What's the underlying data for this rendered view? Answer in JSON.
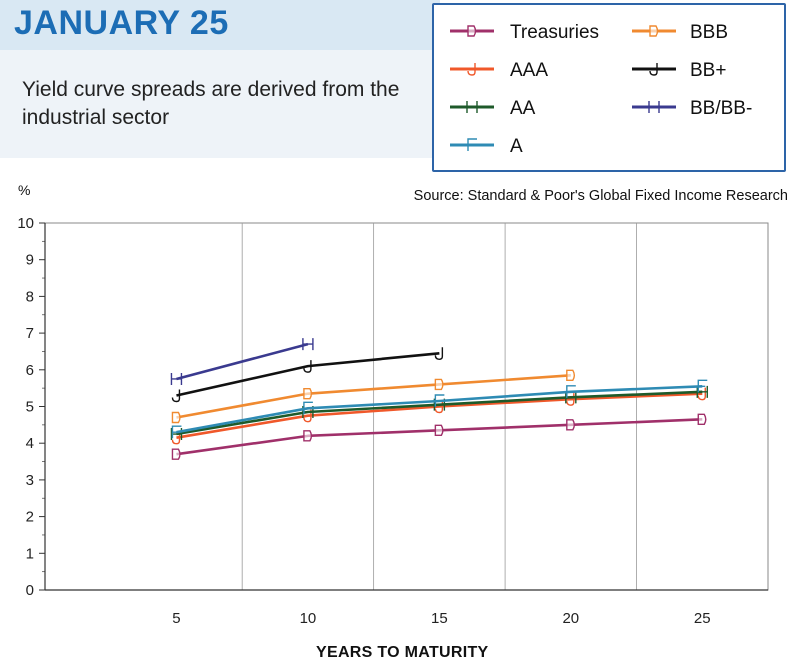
{
  "header": {
    "title": "JANUARY 25",
    "subtitle": "Yield curve spreads are derived from the industrial sector"
  },
  "source": "Source: Standard & Poor's Global Fixed Income Research",
  "y_unit": "%",
  "chart_data": {
    "type": "line",
    "title": "JANUARY 25",
    "xlabel": "YEARS TO MATURITY",
    "ylabel": "%",
    "x_ticks": [
      5,
      10,
      15,
      20,
      25
    ],
    "y_ticks": [
      0,
      1,
      2,
      3,
      4,
      5,
      6,
      7,
      8,
      9,
      10
    ],
    "xlim": [
      0,
      27.5
    ],
    "ylim": [
      0,
      10
    ],
    "grid": true,
    "legend_placement": "top-right",
    "series": [
      {
        "name": "Treasuries",
        "color": "#a0306a",
        "marker": "D",
        "x": [
          5,
          10,
          15,
          20,
          25
        ],
        "values": [
          3.7,
          4.2,
          4.35,
          4.5,
          4.65
        ]
      },
      {
        "name": "AAA",
        "color": "#f0582a",
        "marker": "J",
        "x": [
          5,
          10,
          15,
          20,
          25
        ],
        "values": [
          4.15,
          4.75,
          5.0,
          5.2,
          5.35
        ]
      },
      {
        "name": "AA",
        "color": "#1e5a2a",
        "marker": "H",
        "x": [
          5,
          10,
          15,
          20,
          25
        ],
        "values": [
          4.25,
          4.85,
          5.05,
          5.25,
          5.4
        ]
      },
      {
        "name": "A",
        "color": "#2e8bb4",
        "marker": "F",
        "x": [
          5,
          10,
          15,
          20,
          25
        ],
        "values": [
          4.3,
          4.95,
          5.15,
          5.4,
          5.55
        ]
      },
      {
        "name": "BBB",
        "color": "#f08a30",
        "marker": "B",
        "x": [
          5,
          10,
          15,
          20
        ],
        "values": [
          4.7,
          5.35,
          5.6,
          5.85
        ]
      },
      {
        "name": "BB+",
        "color": "#111111",
        "marker": "J",
        "x": [
          5,
          10,
          15
        ],
        "values": [
          5.3,
          6.1,
          6.45
        ]
      },
      {
        "name": "BB/BB-",
        "color": "#3a3a8f",
        "marker": "H",
        "x": [
          5,
          10
        ],
        "values": [
          5.75,
          6.7
        ]
      }
    ]
  }
}
